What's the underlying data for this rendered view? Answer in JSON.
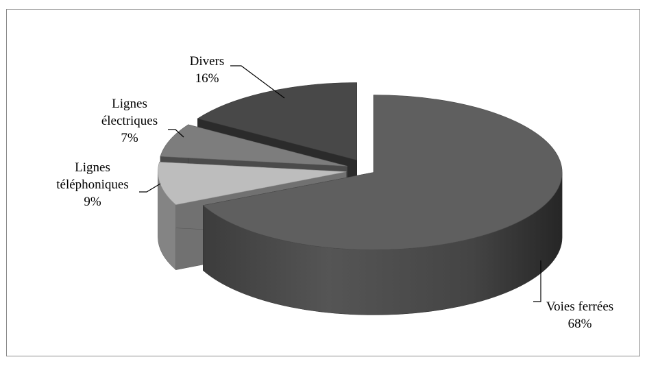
{
  "chart_data": {
    "type": "pie",
    "title": "",
    "style": "3d-exploded",
    "legend": "none",
    "categories": [
      "Voies ferrées",
      "Lignes téléphoniques",
      "Lignes électriques",
      "Divers"
    ],
    "values": [
      68,
      9,
      7,
      16
    ],
    "value_labels": [
      "68%",
      "9%",
      "7%",
      "16%"
    ],
    "colors": [
      "#5f5f5f",
      "#bdbdbd",
      "#7d7d7d",
      "#484848"
    ],
    "label_lines": [
      [
        "Voies ferrées",
        "68%"
      ],
      [
        "Lignes",
        "téléphoniques",
        "9%"
      ],
      [
        "Lignes",
        "électriques",
        "7%"
      ],
      [
        "Divers",
        "16%"
      ]
    ]
  }
}
